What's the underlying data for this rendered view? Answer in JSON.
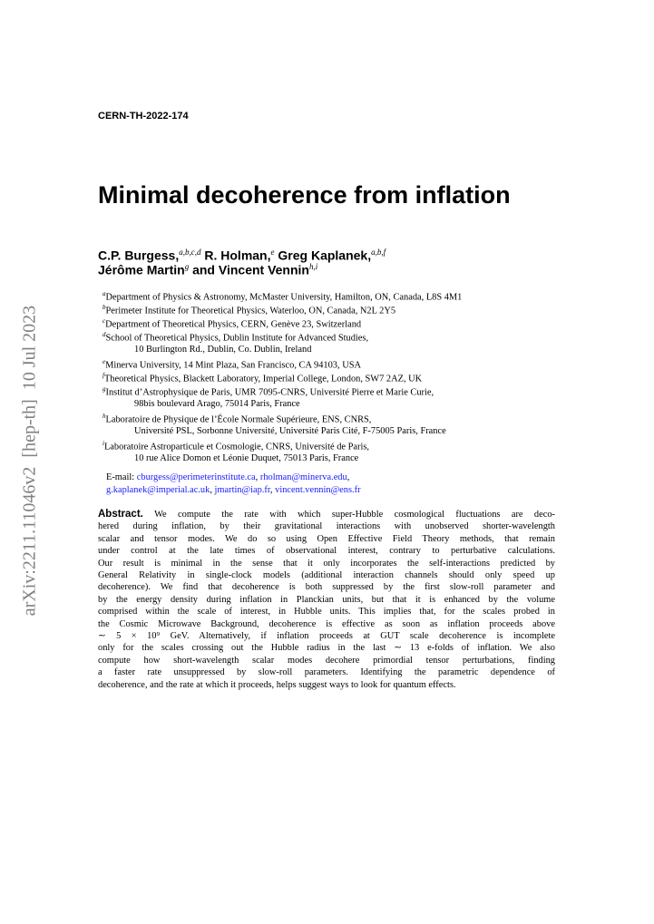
{
  "report_number": "CERN-TH-2022-174",
  "title": "Minimal decoherence from inflation",
  "authors": {
    "lines": [
      [
        {
          "name": "C.P. Burgess,",
          "sup": "a,b,c,d"
        },
        {
          "name": "R. Holman,",
          "sup": "e"
        },
        {
          "name": "Greg Kaplanek,",
          "sup": "a,b,f"
        }
      ],
      [
        {
          "name": "Jérôme Martin",
          "sup": "g"
        },
        {
          "name": "and"
        },
        {
          "name": "Vincent Vennin",
          "sup": "h,i"
        }
      ]
    ]
  },
  "affiliations": [
    {
      "mark": "a",
      "lines": [
        "Department of Physics & Astronomy, McMaster University, Hamilton, ON, Canada, L8S 4M1"
      ]
    },
    {
      "mark": "b",
      "lines": [
        "Perimeter Institute for Theoretical Physics, Waterloo, ON, Canada, N2L 2Y5"
      ]
    },
    {
      "mark": "c",
      "lines": [
        "Department of Theoretical Physics, CERN, Genève 23, Switzerland"
      ]
    },
    {
      "mark": "d",
      "lines": [
        "School of Theoretical Physics, Dublin Institute for Advanced Studies,",
        "10 Burlington Rd., Dublin, Co. Dublin, Ireland"
      ]
    },
    {
      "mark": "e",
      "lines": [
        "Minerva University, 14 Mint Plaza, San Francisco, CA 94103, USA"
      ]
    },
    {
      "mark": "f",
      "lines": [
        "Theoretical Physics, Blackett Laboratory, Imperial College, London, SW7 2AZ, UK"
      ]
    },
    {
      "mark": "g",
      "lines": [
        "Institut d’Astrophysique de Paris, UMR 7095-CNRS, Université Pierre et Marie Curie,",
        "98bis boulevard Arago, 75014 Paris, France"
      ]
    },
    {
      "mark": "h",
      "lines": [
        "Laboratoire de Physique de l’École Normale Supérieure, ENS, CNRS,",
        "Université PSL, Sorbonne Université, Université Paris Cité, F-75005 Paris, France"
      ]
    },
    {
      "mark": "i",
      "lines": [
        "Laboratoire Astroparticule et Cosmologie, CNRS, Université de Paris,",
        "10 rue Alice Domon et Léonie Duquet, 75013 Paris, France"
      ]
    }
  ],
  "email": {
    "label": "E-mail:",
    "separator": ",",
    "lines": [
      [
        "cburgess@perimeterinstitute.ca",
        "rholman@minerva.edu"
      ],
      [
        "g.kaplanek@imperial.ac.uk",
        "jmartin@iap.fr",
        "vincent.vennin@ens.fr"
      ]
    ]
  },
  "abstract": {
    "label": "Abstract.",
    "lines": [
      "We compute the rate with which super-Hubble cosmological fluctuations are deco-",
      "hered during inflation, by their gravitational interactions with unobserved shorter-wavelength",
      "scalar and tensor modes. We do so using Open Effective Field Theory methods, that remain",
      "under control at the late times of observational interest, contrary to perturbative calculations.",
      "Our result is minimal in the sense that it only incorporates the self-interactions predicted by",
      "General Relativity in single-clock models (additional interaction channels should only speed up",
      "decoherence). We find that decoherence is both suppressed by the first slow-roll parameter and",
      "by the energy density during inflation in Planckian units, but that it is enhanced by the volume",
      "comprised within the scale of interest, in Hubble units. This implies that, for the scales probed in",
      "the Cosmic Microwave Background, decoherence is effective as soon as inflation proceeds above",
      "∼ 5 × 10⁹ GeV. Alternatively, if inflation proceeds at GUT scale decoherence is incomplete",
      "only for the scales crossing out the Hubble radius in the last ∼ 13 e-folds of inflation. We also",
      "compute how short-wavelength scalar modes decohere primordial tensor perturbations, finding",
      "a faster rate unsuppressed by slow-roll parameters. Identifying the parametric dependence of",
      "decoherence, and the rate at which it proceeds, helps suggest ways to look for quantum effects."
    ]
  },
  "arxiv_stamp": "arXiv:2211.11046v2  [hep-th]  10 Jul 2023"
}
